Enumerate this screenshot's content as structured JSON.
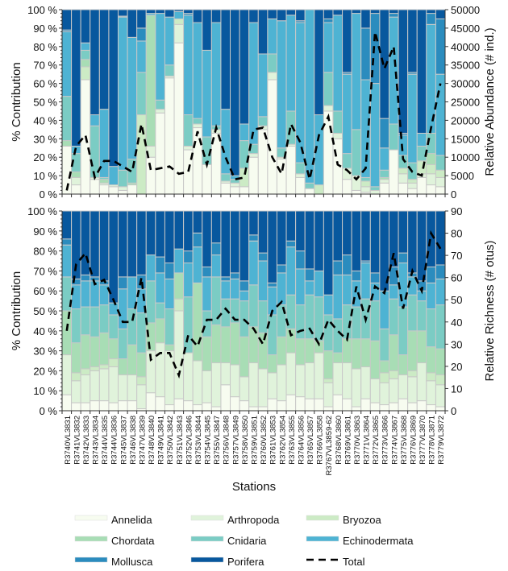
{
  "chart_data": [
    {
      "type": "bar",
      "stacked": true,
      "ylabel": "% Contribution",
      "y2label": "Relative Abundance (# ind.)",
      "ylim": [
        0,
        100
      ],
      "y2lim": [
        0,
        50000
      ],
      "yticks": [
        "0 %",
        "10 %",
        "20 %",
        "30 %",
        "40 %",
        "50 %",
        "60 %",
        "70 %",
        "80 %",
        "90 %",
        "100 %"
      ],
      "y2ticks": [
        "0",
        "5000",
        "10000",
        "15000",
        "20000",
        "25000",
        "30000",
        "35000",
        "40000",
        "45000",
        "50000"
      ],
      "series_values": [
        [
          26,
          0,
          0,
          3,
          24,
          35,
          1,
          11
        ],
        [
          5,
          4,
          0,
          3,
          10,
          4,
          0,
          74
        ],
        [
          62,
          0,
          7,
          4,
          5,
          4,
          0,
          18
        ],
        [
          8,
          1,
          0,
          0,
          28,
          6,
          0,
          57
        ],
        [
          5,
          1,
          0,
          2,
          1,
          37,
          0,
          54
        ],
        [
          4,
          1,
          0,
          0,
          0,
          10,
          0,
          85
        ],
        [
          2,
          2,
          0,
          0,
          9,
          83,
          0.5,
          3.5
        ],
        [
          5,
          0,
          0,
          1,
          13,
          66,
          0,
          15
        ],
        [
          0,
          0,
          43,
          0,
          23,
          17,
          7,
          10
        ],
        [
          20,
          6,
          0,
          71,
          0,
          1,
          0,
          2
        ],
        [
          44,
          2,
          0,
          0,
          5,
          47,
          0,
          2
        ],
        [
          63,
          1,
          0,
          0,
          6,
          26,
          0,
          4
        ],
        [
          82,
          10,
          3,
          0,
          0,
          4,
          0,
          1
        ],
        [
          24,
          2,
          0,
          0,
          17,
          54,
          1,
          2
        ],
        [
          36,
          2,
          0,
          0,
          3,
          52,
          0,
          7
        ],
        [
          16,
          0,
          0,
          0,
          15,
          47,
          0,
          22
        ],
        [
          33,
          2,
          0,
          0,
          2,
          56,
          0,
          7
        ],
        [
          6,
          1,
          0,
          0,
          4,
          35,
          0,
          54
        ],
        [
          4,
          2,
          0,
          0,
          2,
          2,
          0,
          90
        ],
        [
          4,
          0,
          10,
          0,
          15,
          9,
          0,
          62
        ],
        [
          20,
          2,
          0,
          0,
          5,
          66,
          0,
          7
        ],
        [
          35,
          2,
          0,
          0,
          5,
          34,
          0,
          24
        ],
        [
          62,
          4,
          0,
          0,
          10,
          19,
          0,
          5
        ],
        [
          19,
          1,
          0,
          0,
          5,
          69,
          0,
          6
        ],
        [
          26,
          1,
          0,
          0,
          18,
          52,
          0,
          3
        ],
        [
          9,
          2,
          0,
          0,
          6,
          76,
          1,
          6
        ],
        [
          3,
          0,
          0,
          0,
          3,
          94,
          0,
          0
        ],
        [
          0,
          0,
          5,
          0,
          0,
          38,
          0,
          57
        ],
        [
          45,
          3,
          0,
          0,
          18,
          27,
          2,
          5
        ],
        [
          30,
          3,
          0,
          0,
          12,
          52,
          0,
          3
        ],
        [
          8,
          6,
          0,
          0,
          8,
          43,
          1,
          34
        ],
        [
          2,
          8,
          0,
          0,
          25,
          63,
          0,
          2
        ],
        [
          1,
          3,
          3,
          0,
          2,
          53,
          28,
          10
        ],
        [
          0,
          2,
          0,
          0,
          2,
          56,
          38,
          2
        ],
        [
          6,
          2,
          0,
          1,
          4,
          12,
          16,
          59
        ],
        [
          24,
          0,
          0,
          0,
          14,
          58,
          2,
          2
        ],
        [
          6,
          5,
          3,
          0,
          7,
          11,
          1,
          67
        ],
        [
          3,
          3,
          2,
          0,
          9,
          48,
          1,
          34
        ],
        [
          9,
          2,
          7,
          0,
          8,
          7,
          0,
          67
        ],
        [
          5,
          6,
          5,
          6,
          11,
          59,
          6,
          2
        ],
        [
          4,
          5,
          4,
          0,
          8,
          44,
          30,
          5
        ]
      ],
      "total": [
        1000,
        13000,
        16000,
        4500,
        9000,
        9000,
        7500,
        6000,
        19000,
        6500,
        7000,
        7500,
        5500,
        6000,
        17000,
        8000,
        18000,
        10000,
        4000,
        4500,
        17500,
        18000,
        10000,
        5500,
        19000,
        14000,
        4000,
        16000,
        21000,
        8000,
        6500,
        4000,
        7000,
        44000,
        34000,
        40000,
        9500,
        6000,
        5000,
        18000,
        30000
      ]
    },
    {
      "type": "bar",
      "stacked": true,
      "ylabel": "% Contribution",
      "y2label": "Relative Richness (# otus)",
      "ylim": [
        0,
        100
      ],
      "y2lim": [
        0,
        90
      ],
      "yticks": [
        "0 %",
        "10 %",
        "20 %",
        "30 %",
        "40 %",
        "50 %",
        "60 %",
        "70 %",
        "80 %",
        "90 %",
        "100 %"
      ],
      "y2ticks": [
        "0",
        "10",
        "20",
        "30",
        "40",
        "50",
        "60",
        "70",
        "80",
        "90"
      ],
      "series_values": [
        [
          8,
          20,
          0,
          22,
          17,
          16,
          3,
          14
        ],
        [
          4,
          11,
          4,
          15,
          17,
          12,
          3,
          34
        ],
        [
          4,
          14,
          3,
          17,
          14,
          13,
          3,
          32
        ],
        [
          5,
          15,
          2,
          15,
          15,
          13,
          2,
          33
        ],
        [
          5,
          16,
          2,
          16,
          14,
          10,
          2,
          35
        ],
        [
          4,
          18,
          4,
          10,
          12,
          6,
          0,
          46
        ],
        [
          5,
          13,
          0,
          8,
          15,
          20,
          6,
          33
        ],
        [
          5,
          13,
          0,
          15,
          18,
          16,
          0,
          33
        ],
        [
          1,
          12,
          4,
          12,
          20,
          12,
          7,
          32
        ],
        [
          9,
          21,
          0,
          14,
          21,
          13,
          0,
          22
        ],
        [
          7,
          27,
          0,
          12,
          8,
          15,
          8,
          23
        ],
        [
          3,
          27,
          0,
          3,
          18,
          15,
          8,
          26
        ],
        [
          6,
          44,
          6,
          13,
          0,
          12,
          0,
          19
        ],
        [
          5,
          24,
          0,
          0,
          28,
          17,
          6,
          20
        ],
        [
          3,
          22,
          0,
          39,
          0,
          18,
          7,
          11
        ],
        [
          4,
          16,
          0,
          17,
          13,
          17,
          5,
          28
        ],
        [
          2,
          22,
          0,
          19,
          24,
          11,
          6,
          16
        ],
        [
          13,
          11,
          0,
          18,
          14,
          9,
          2,
          33
        ],
        [
          7,
          16,
          0,
          21,
          12,
          10,
          3,
          31
        ],
        [
          5,
          12,
          0,
          20,
          18,
          5,
          5,
          35
        ],
        [
          2,
          22,
          0,
          18,
          21,
          22,
          3,
          12
        ],
        [
          2,
          19,
          0,
          18,
          16,
          20,
          4,
          21
        ],
        [
          6,
          13,
          0,
          9,
          20,
          14,
          2,
          36
        ],
        [
          5,
          18,
          0,
          14,
          16,
          16,
          4,
          27
        ],
        [
          8,
          21,
          0,
          12,
          17,
          24,
          3,
          15
        ],
        [
          7,
          16,
          0,
          13,
          17,
          18,
          9,
          20
        ],
        [
          6,
          18,
          0,
          12,
          22,
          7,
          6,
          29
        ],
        [
          6,
          23,
          0,
          6,
          22,
          13,
          0,
          30
        ],
        [
          2,
          12,
          2,
          14,
          18,
          10,
          0,
          42
        ],
        [
          8,
          16,
          0,
          5,
          17,
          22,
          7,
          25
        ],
        [
          6,
          18,
          0,
          12,
          17,
          15,
          10,
          22
        ],
        [
          2,
          19,
          0,
          15,
          16,
          13,
          5,
          30
        ],
        [
          6,
          16,
          0,
          14,
          20,
          18,
          1,
          25
        ],
        [
          4,
          12,
          0,
          19,
          20,
          9,
          5,
          31
        ],
        [
          3,
          11,
          5,
          6,
          16,
          19,
          0,
          40
        ],
        [
          4,
          12,
          4,
          18,
          18,
          7,
          9,
          28
        ],
        [
          6,
          12,
          0,
          10,
          24,
          22,
          5,
          21
        ],
        [
          4,
          13,
          3,
          20,
          18,
          9,
          2,
          31
        ],
        [
          5,
          19,
          0,
          16,
          15,
          5,
          5,
          35
        ],
        [
          3,
          12,
          4,
          13,
          19,
          13,
          8,
          28
        ],
        [
          2,
          11,
          5,
          13,
          22,
          13,
          7,
          27
        ]
      ],
      "total": [
        36,
        66,
        71,
        57,
        59,
        50,
        40,
        40,
        60,
        23,
        26,
        26,
        16,
        34,
        29,
        41,
        41,
        46,
        41,
        41,
        37,
        30,
        45,
        49,
        34,
        36,
        37,
        30,
        41,
        36,
        32,
        56,
        41,
        56,
        53,
        71,
        46,
        63,
        54,
        80,
        73
      ]
    }
  ],
  "categories": [
    "R3740VL3831",
    "R3741VL3832",
    "R3742VL3833",
    "R3743VL3834",
    "R3744VL3835",
    "R3744VL3836",
    "R3745VL3837",
    "R3746VL3838",
    "R3747VL3839",
    "R3748VL3840",
    "R3749VL3841",
    "R3750VL3842",
    "R3751VL3843",
    "R3752VL3846",
    "R3753VL3844",
    "R3754VL3845",
    "R3755VL3847",
    "R3756VL3848",
    "R3757VL3849",
    "R3758VL3850",
    "R3759VL3851",
    "R3760VL3852",
    "R3761VL3853",
    "R3762VL3854",
    "R3763VL3855",
    "R3764VL3856",
    "R3765VL3857",
    "R3766VL3858",
    "R3767VL3859-62",
    "R3768VL3860",
    "R3769VL3861",
    "R3770VL3863",
    "R3771VL3864",
    "R3772VL3865",
    "R3773VL3866",
    "R3774VL3867",
    "R3775VL3868",
    "R3776VL3869",
    "R3777VL3870",
    "R3778VL3871",
    "R3779VL3872"
  ],
  "xlabel": "Stations",
  "series": [
    {
      "name": "Annelida",
      "color": "#f7fcf0"
    },
    {
      "name": "Arthropoda",
      "color": "#e0f3db"
    },
    {
      "name": "Bryozoa",
      "color": "#ccebc5"
    },
    {
      "name": "Chordata",
      "color": "#a8ddb5"
    },
    {
      "name": "Cnidaria",
      "color": "#7bccc4"
    },
    {
      "name": "Echinodermata",
      "color": "#4eb3d3"
    },
    {
      "name": "Mollusca",
      "color": "#2b8cbe"
    },
    {
      "name": "Porifera",
      "color": "#08589e"
    }
  ],
  "total_label": "Total",
  "legend_position": "bottom"
}
